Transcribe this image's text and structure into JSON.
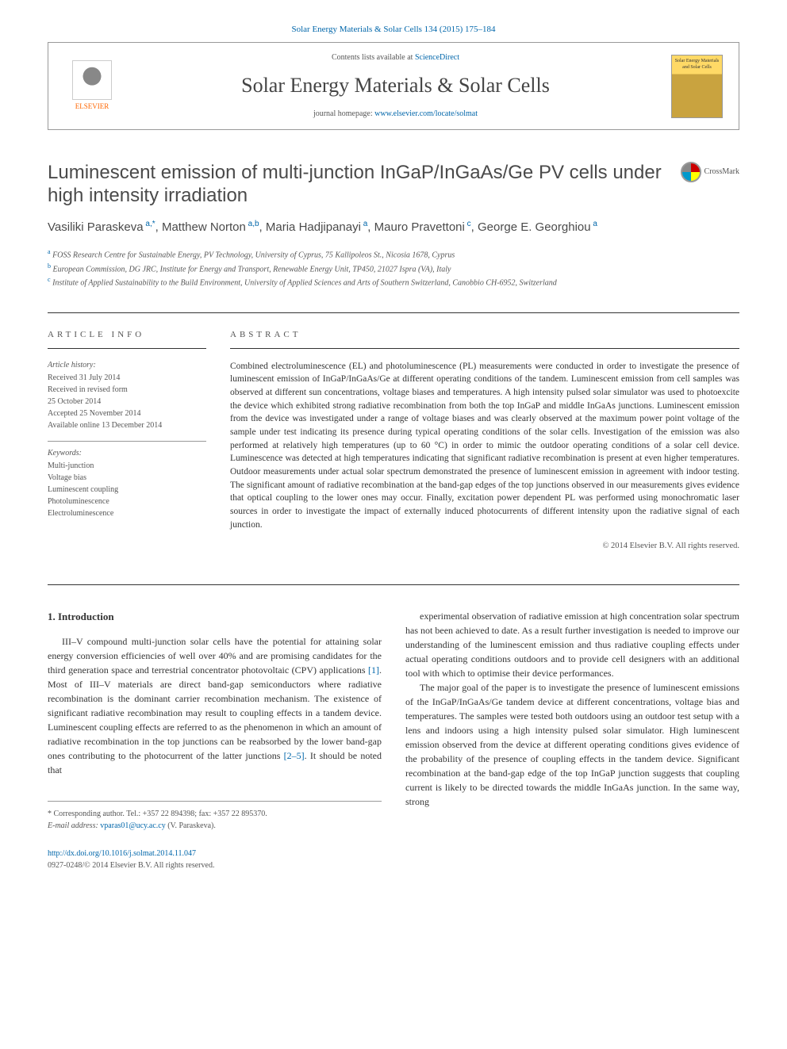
{
  "header": {
    "top_link": "Solar Energy Materials & Solar Cells 134 (2015) 175–184",
    "contents_prefix": "Contents lists available at ",
    "contents_link": "ScienceDirect",
    "journal_name": "Solar Energy Materials & Solar Cells",
    "homepage_prefix": "journal homepage: ",
    "homepage_link": "www.elsevier.com/locate/solmat",
    "elsevier_label": "ELSEVIER",
    "cover_text": "Solar Energy Materials and Solar Cells"
  },
  "crossmark_label": "CrossMark",
  "title": "Luminescent emission of multi-junction InGaP/InGaAs/Ge PV cells under high intensity irradiation",
  "authors_html": "Vasiliki Paraskeva",
  "authors": [
    {
      "name": "Vasiliki Paraskeva",
      "sup": "a,*"
    },
    {
      "name": "Matthew Norton",
      "sup": "a,b"
    },
    {
      "name": "Maria Hadjipanayi",
      "sup": "a"
    },
    {
      "name": "Mauro Pravettoni",
      "sup": "c"
    },
    {
      "name": "George E. Georghiou",
      "sup": "a"
    }
  ],
  "affiliations": [
    {
      "sup": "a",
      "text": "FOSS Research Centre for Sustainable Energy, PV Technology, University of Cyprus, 75 Kallipoleos St., Nicosia 1678, Cyprus"
    },
    {
      "sup": "b",
      "text": "European Commission, DG JRC, Institute for Energy and Transport, Renewable Energy Unit, TP450, 21027 Ispra (VA), Italy"
    },
    {
      "sup": "c",
      "text": "Institute of Applied Sustainability to the Build Environment, University of Applied Sciences and Arts of Southern Switzerland, Canobbio CH-6952, Switzerland"
    }
  ],
  "article_info": {
    "label": "article info",
    "history_label": "Article history:",
    "history": [
      "Received 31 July 2014",
      "Received in revised form",
      "25 October 2014",
      "Accepted 25 November 2014",
      "Available online 13 December 2014"
    ],
    "keywords_label": "Keywords:",
    "keywords": [
      "Multi-junction",
      "Voltage bias",
      "Luminescent coupling",
      "Photoluminescence",
      "Electroluminescence"
    ]
  },
  "abstract": {
    "label": "abstract",
    "text": "Combined electroluminescence (EL) and photoluminescence (PL) measurements were conducted in order to investigate the presence of luminescent emission of InGaP/InGaAs/Ge at different operating conditions of the tandem. Luminescent emission from cell samples was observed at different sun concentrations, voltage biases and temperatures. A high intensity pulsed solar simulator was used to photoexcite the device which exhibited strong radiative recombination from both the top InGaP and middle InGaAs junctions. Luminescent emission from the device was investigated under a range of voltage biases and was clearly observed at the maximum power point voltage of the sample under test indicating its presence during typical operating conditions of the solar cells. Investigation of the emission was also performed at relatively high temperatures (up to 60 °C) in order to mimic the outdoor operating conditions of a solar cell device. Luminescence was detected at high temperatures indicating that significant radiative recombination is present at even higher temperatures. Outdoor measurements under actual solar spectrum demonstrated the presence of luminescent emission in agreement with indoor testing. The significant amount of radiative recombination at the band-gap edges of the top junctions observed in our measurements gives evidence that optical coupling to the lower ones may occur. Finally, excitation power dependent PL was performed using monochromatic laser sources in order to investigate the impact of externally induced photocurrents of different intensity upon the radiative signal of each junction.",
    "copyright": "© 2014 Elsevier B.V. All rights reserved."
  },
  "body": {
    "heading": "1. Introduction",
    "col1_p1": "III–V compound multi-junction solar cells have the potential for attaining solar energy conversion efficiencies of well over 40% and are promising candidates for the third generation space and terrestrial concentrator photovoltaic (CPV) applications [1]. Most of III–V materials are direct band-gap semiconductors where radiative recombination is the dominant carrier recombination mechanism. The existence of significant radiative recombination may result to coupling effects in a tandem device. Luminescent coupling effects are referred to as the phenomenon in which an amount of radiative recombination in the top junctions can be reabsorbed by the lower band-gap ones contributing to the photocurrent of the latter junctions [2–5]. It should be noted that",
    "col2_p1": "experimental observation of radiative emission at high concentration solar spectrum has not been achieved to date. As a result further investigation is needed to improve our understanding of the luminescent emission and thus radiative coupling effects under actual operating conditions outdoors and to provide cell designers with an additional tool with which to optimise their device performances.",
    "col2_p2": "The major goal of the paper is to investigate the presence of luminescent emissions of the InGaP/InGaAs/Ge tandem device at different concentrations, voltage bias and temperatures. The samples were tested both outdoors using an outdoor test setup with a lens and indoors using a high intensity pulsed solar simulator. High luminescent emission observed from the device at different operating conditions gives evidence of the probability of the presence of coupling effects in the tandem device. Significant recombination at the band-gap edge of the top InGaP junction suggests that coupling current is likely to be directed towards the middle InGaAs junction. In the same way, strong"
  },
  "footnote": {
    "corresponding": "* Corresponding author. Tel.: +357 22 894398; fax: +357 22 895370.",
    "email_label": "E-mail address: ",
    "email": "vparas01@ucy.ac.cy",
    "email_person": " (V. Paraskeva)."
  },
  "doi": {
    "url": "http://dx.doi.org/10.1016/j.solmat.2014.11.047",
    "issn_line": "0927-0248/© 2014 Elsevier B.V. All rights reserved."
  },
  "colors": {
    "link_color": "#0066aa",
    "text_color": "#333333",
    "muted_color": "#555555",
    "orange": "#ff6600"
  }
}
